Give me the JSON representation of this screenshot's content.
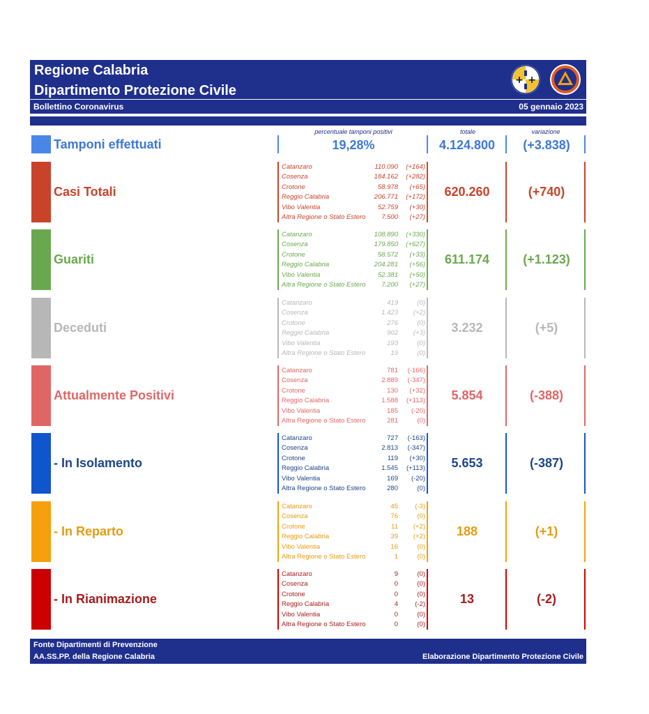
{
  "header": {
    "title1": "Regione Calabria",
    "title2": "Dipartimento Protezione Civile",
    "subtitle": "Bollettino Coronavirus",
    "date": "05 gennaio 2023"
  },
  "columns": {
    "percent": "percentuale tamponi positivi",
    "total": "totale",
    "variation": "variazione"
  },
  "tamponi": {
    "label": "Tamponi effettuati",
    "percent": "19,28%",
    "total": "4.124.800",
    "variation": "(+3.838)",
    "color": "#4a86e8"
  },
  "blocks": [
    {
      "label": "Casi Totali",
      "total": "620.260",
      "variation": "(+740)",
      "color": "#c9432b",
      "italic": true,
      "rows": [
        {
          "name": "Catanzaro",
          "value": "110.090",
          "delta": "(+164)"
        },
        {
          "name": "Cosenza",
          "value": "184.162",
          "delta": "(+282)"
        },
        {
          "name": "Crotone",
          "value": "58.978",
          "delta": "(+65)"
        },
        {
          "name": "Reggio Calabria",
          "value": "206.771",
          "delta": "(+172)"
        },
        {
          "name": "Vibo Valentia",
          "value": "52.759",
          "delta": "(+30)"
        },
        {
          "name": "Altra Regione o Stato Estero",
          "value": "7.500",
          "delta": "(+27)"
        }
      ]
    },
    {
      "label": "Guariti",
      "total": "611.174",
      "variation": "(+1.123)",
      "color": "#6aa84f",
      "italic": true,
      "rows": [
        {
          "name": "Catanzaro",
          "value": "108.890",
          "delta": "(+330)"
        },
        {
          "name": "Cosenza",
          "value": "179.850",
          "delta": "(+627)"
        },
        {
          "name": "Crotone",
          "value": "58.572",
          "delta": "(+33)"
        },
        {
          "name": "Reggio Calabria",
          "value": "204.281",
          "delta": "(+56)"
        },
        {
          "name": "Vibo Valentia",
          "value": "52.381",
          "delta": "(+50)"
        },
        {
          "name": "Altra Regione o Stato Estero",
          "value": "7.200",
          "delta": "(+27)"
        }
      ]
    },
    {
      "label": "Deceduti",
      "total": "3.232",
      "variation": "(+5)",
      "color": "#b7b7b7",
      "italic": true,
      "rows": [
        {
          "name": "Catanzaro",
          "value": "419",
          "delta": "(0)"
        },
        {
          "name": "Cosenza",
          "value": "1.423",
          "delta": "(+2)"
        },
        {
          "name": "Crotone",
          "value": "276",
          "delta": "(0)"
        },
        {
          "name": "Reggio Calabria",
          "value": "902",
          "delta": "(+3)"
        },
        {
          "name": "Vibo Valentia",
          "value": "193",
          "delta": "(0)"
        },
        {
          "name": "Altra Regione o Stato Estero",
          "value": "19",
          "delta": "(0)"
        }
      ]
    },
    {
      "label": "Attualmente Positivi",
      "total": "5.854",
      "variation": "(-388)",
      "color": "#e06666",
      "italic": false,
      "rows": [
        {
          "name": "Catanzaro",
          "value": "781",
          "delta": "(-166)"
        },
        {
          "name": "Cosenza",
          "value": "2.889",
          "delta": "(-347)"
        },
        {
          "name": "Crotone",
          "value": "130",
          "delta": "(+32)"
        },
        {
          "name": "Reggio Calabria",
          "value": "1.588",
          "delta": "(+113)"
        },
        {
          "name": "Vibo Valentia",
          "value": "185",
          "delta": "(-20)"
        },
        {
          "name": "Altra Regione o Stato Estero",
          "value": "281",
          "delta": "(0)"
        }
      ]
    },
    {
      "label": " - In Isolamento",
      "total": "5.653",
      "variation": "(-387)",
      "color": "#1155cc",
      "textColor": "#1c4587",
      "italic": false,
      "rows": [
        {
          "name": "Catanzaro",
          "value": "727",
          "delta": "(-163)"
        },
        {
          "name": "Cosenza",
          "value": "2.813",
          "delta": "(-347)"
        },
        {
          "name": "Crotone",
          "value": "119",
          "delta": "(+30)"
        },
        {
          "name": "Reggio Calabria",
          "value": "1.545",
          "delta": "(+113)"
        },
        {
          "name": "Vibo Valentia",
          "value": "169",
          "delta": "(-20)"
        },
        {
          "name": "Altra Regione o Stato Estero",
          "value": "280",
          "delta": "(0)"
        }
      ]
    },
    {
      "label": " - In Reparto",
      "total": "188",
      "variation": "(+1)",
      "color": "#f5a00c",
      "textColor": "#e69b12",
      "italic": false,
      "rows": [
        {
          "name": "Catanzaro",
          "value": "45",
          "delta": "(-3)"
        },
        {
          "name": "Cosenza",
          "value": "76",
          "delta": "(0)"
        },
        {
          "name": "Crotone",
          "value": "11",
          "delta": "(+2)"
        },
        {
          "name": "Reggio Calabria",
          "value": "39",
          "delta": "(+2)"
        },
        {
          "name": "Vibo Valentia",
          "value": "16",
          "delta": "(0)"
        },
        {
          "name": "Altra Regione o Stato Estero",
          "value": "1",
          "delta": "(0)"
        }
      ]
    },
    {
      "label": " - In Rianimazione",
      "total": "13",
      "variation": "(-2)",
      "color": "#cc0000",
      "textColor": "#a61c1c",
      "italic": false,
      "rows": [
        {
          "name": "Catanzaro",
          "value": "9",
          "delta": "(0)"
        },
        {
          "name": "Cosenza",
          "value": "0",
          "delta": "(0)"
        },
        {
          "name": "Crotone",
          "value": "0",
          "delta": "(0)"
        },
        {
          "name": "Reggio Calabria",
          "value": "4",
          "delta": "(-2)"
        },
        {
          "name": "Vibo Valentia",
          "value": "0",
          "delta": "(0)"
        },
        {
          "name": "Altra Regione o Stato Estero",
          "value": "0",
          "delta": "(0)"
        }
      ]
    }
  ],
  "footer": {
    "line1": "Fonte Dipartimenti di Prevenzione",
    "line2": "AA.SS.PP.  della Regione Calabria",
    "right": "Elaborazione Dipartimento Protezione Civile"
  }
}
